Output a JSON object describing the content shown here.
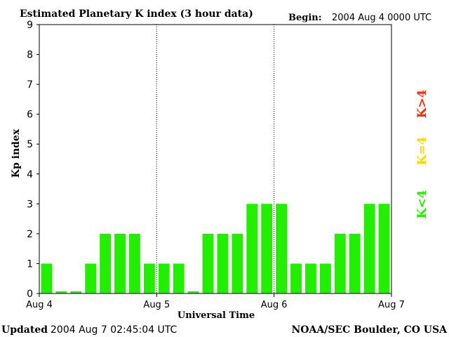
{
  "header": {
    "title": "Estimated Planetary K index (3 hour data)",
    "begin_label": "Begin:",
    "begin_value": "2004 Aug 4 0000 UTC"
  },
  "footer": {
    "updated_label": "Updated",
    "updated_value": "2004 Aug  7 02:45:04 UTC",
    "credit": "NOAA/SEC Boulder, CO USA"
  },
  "legend": {
    "high": {
      "label": "K>4",
      "color": "#ff2a00"
    },
    "equal": {
      "label": "K=4",
      "color": "#ffd700"
    },
    "low": {
      "label": "K<4",
      "color": "#22ee00"
    }
  },
  "chart_data": {
    "type": "bar",
    "title": "Estimated Planetary K index (3 hour data)",
    "xlabel": "Universal Time",
    "ylabel": "Kp index",
    "ylim": [
      0,
      9
    ],
    "yticks": [
      0,
      1,
      2,
      3,
      4,
      5,
      6,
      7,
      8,
      9
    ],
    "x_tick_labels": [
      "Aug 4",
      "Aug 5",
      "Aug 6",
      "Aug 7"
    ],
    "interval_hours": 3,
    "day_separators": "dotted",
    "values": [
      1,
      0,
      0,
      1,
      2,
      2,
      2,
      1,
      1,
      1,
      0,
      2,
      2,
      2,
      3,
      3,
      3,
      1,
      1,
      1,
      2,
      2,
      3,
      3
    ],
    "bar_color": "#22ee00",
    "grid": false
  }
}
